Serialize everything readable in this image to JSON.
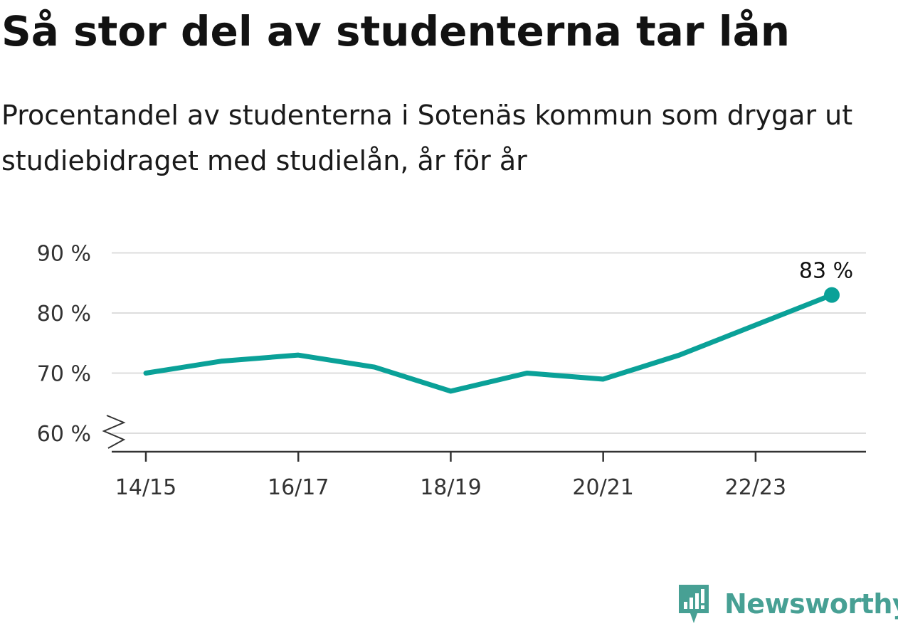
{
  "title": "Så stor del av studenterna tar lån",
  "subtitle": "Procentandel av studenterna i Sotenäs kommun som drygar ut studiebidraget med studielån, år för år",
  "brand": "Newsworthy",
  "colors": {
    "line": "#0aa198",
    "grid": "#dddddd",
    "axis": "#333333",
    "brand": "#47a094"
  },
  "chart_data": {
    "type": "line",
    "x": [
      "14/15",
      "15/16",
      "16/17",
      "17/18",
      "18/19",
      "19/20",
      "20/21",
      "21/22",
      "22/23",
      "23/24"
    ],
    "series": [
      {
        "values": [
          70,
          72,
          73,
          71,
          67,
          70,
          69,
          73,
          78,
          83
        ]
      }
    ],
    "x_tick_labels": [
      "14/15",
      "16/17",
      "18/19",
      "20/21",
      "22/23"
    ],
    "y_ticks": [
      60,
      70,
      80,
      90
    ],
    "y_tick_labels": [
      "60 %",
      "70 %",
      "80 %",
      "90 %"
    ],
    "ylim": [
      60,
      90
    ],
    "y_axis_break": true,
    "grid": true,
    "annotation": {
      "index": 9,
      "text": "83 %"
    }
  }
}
